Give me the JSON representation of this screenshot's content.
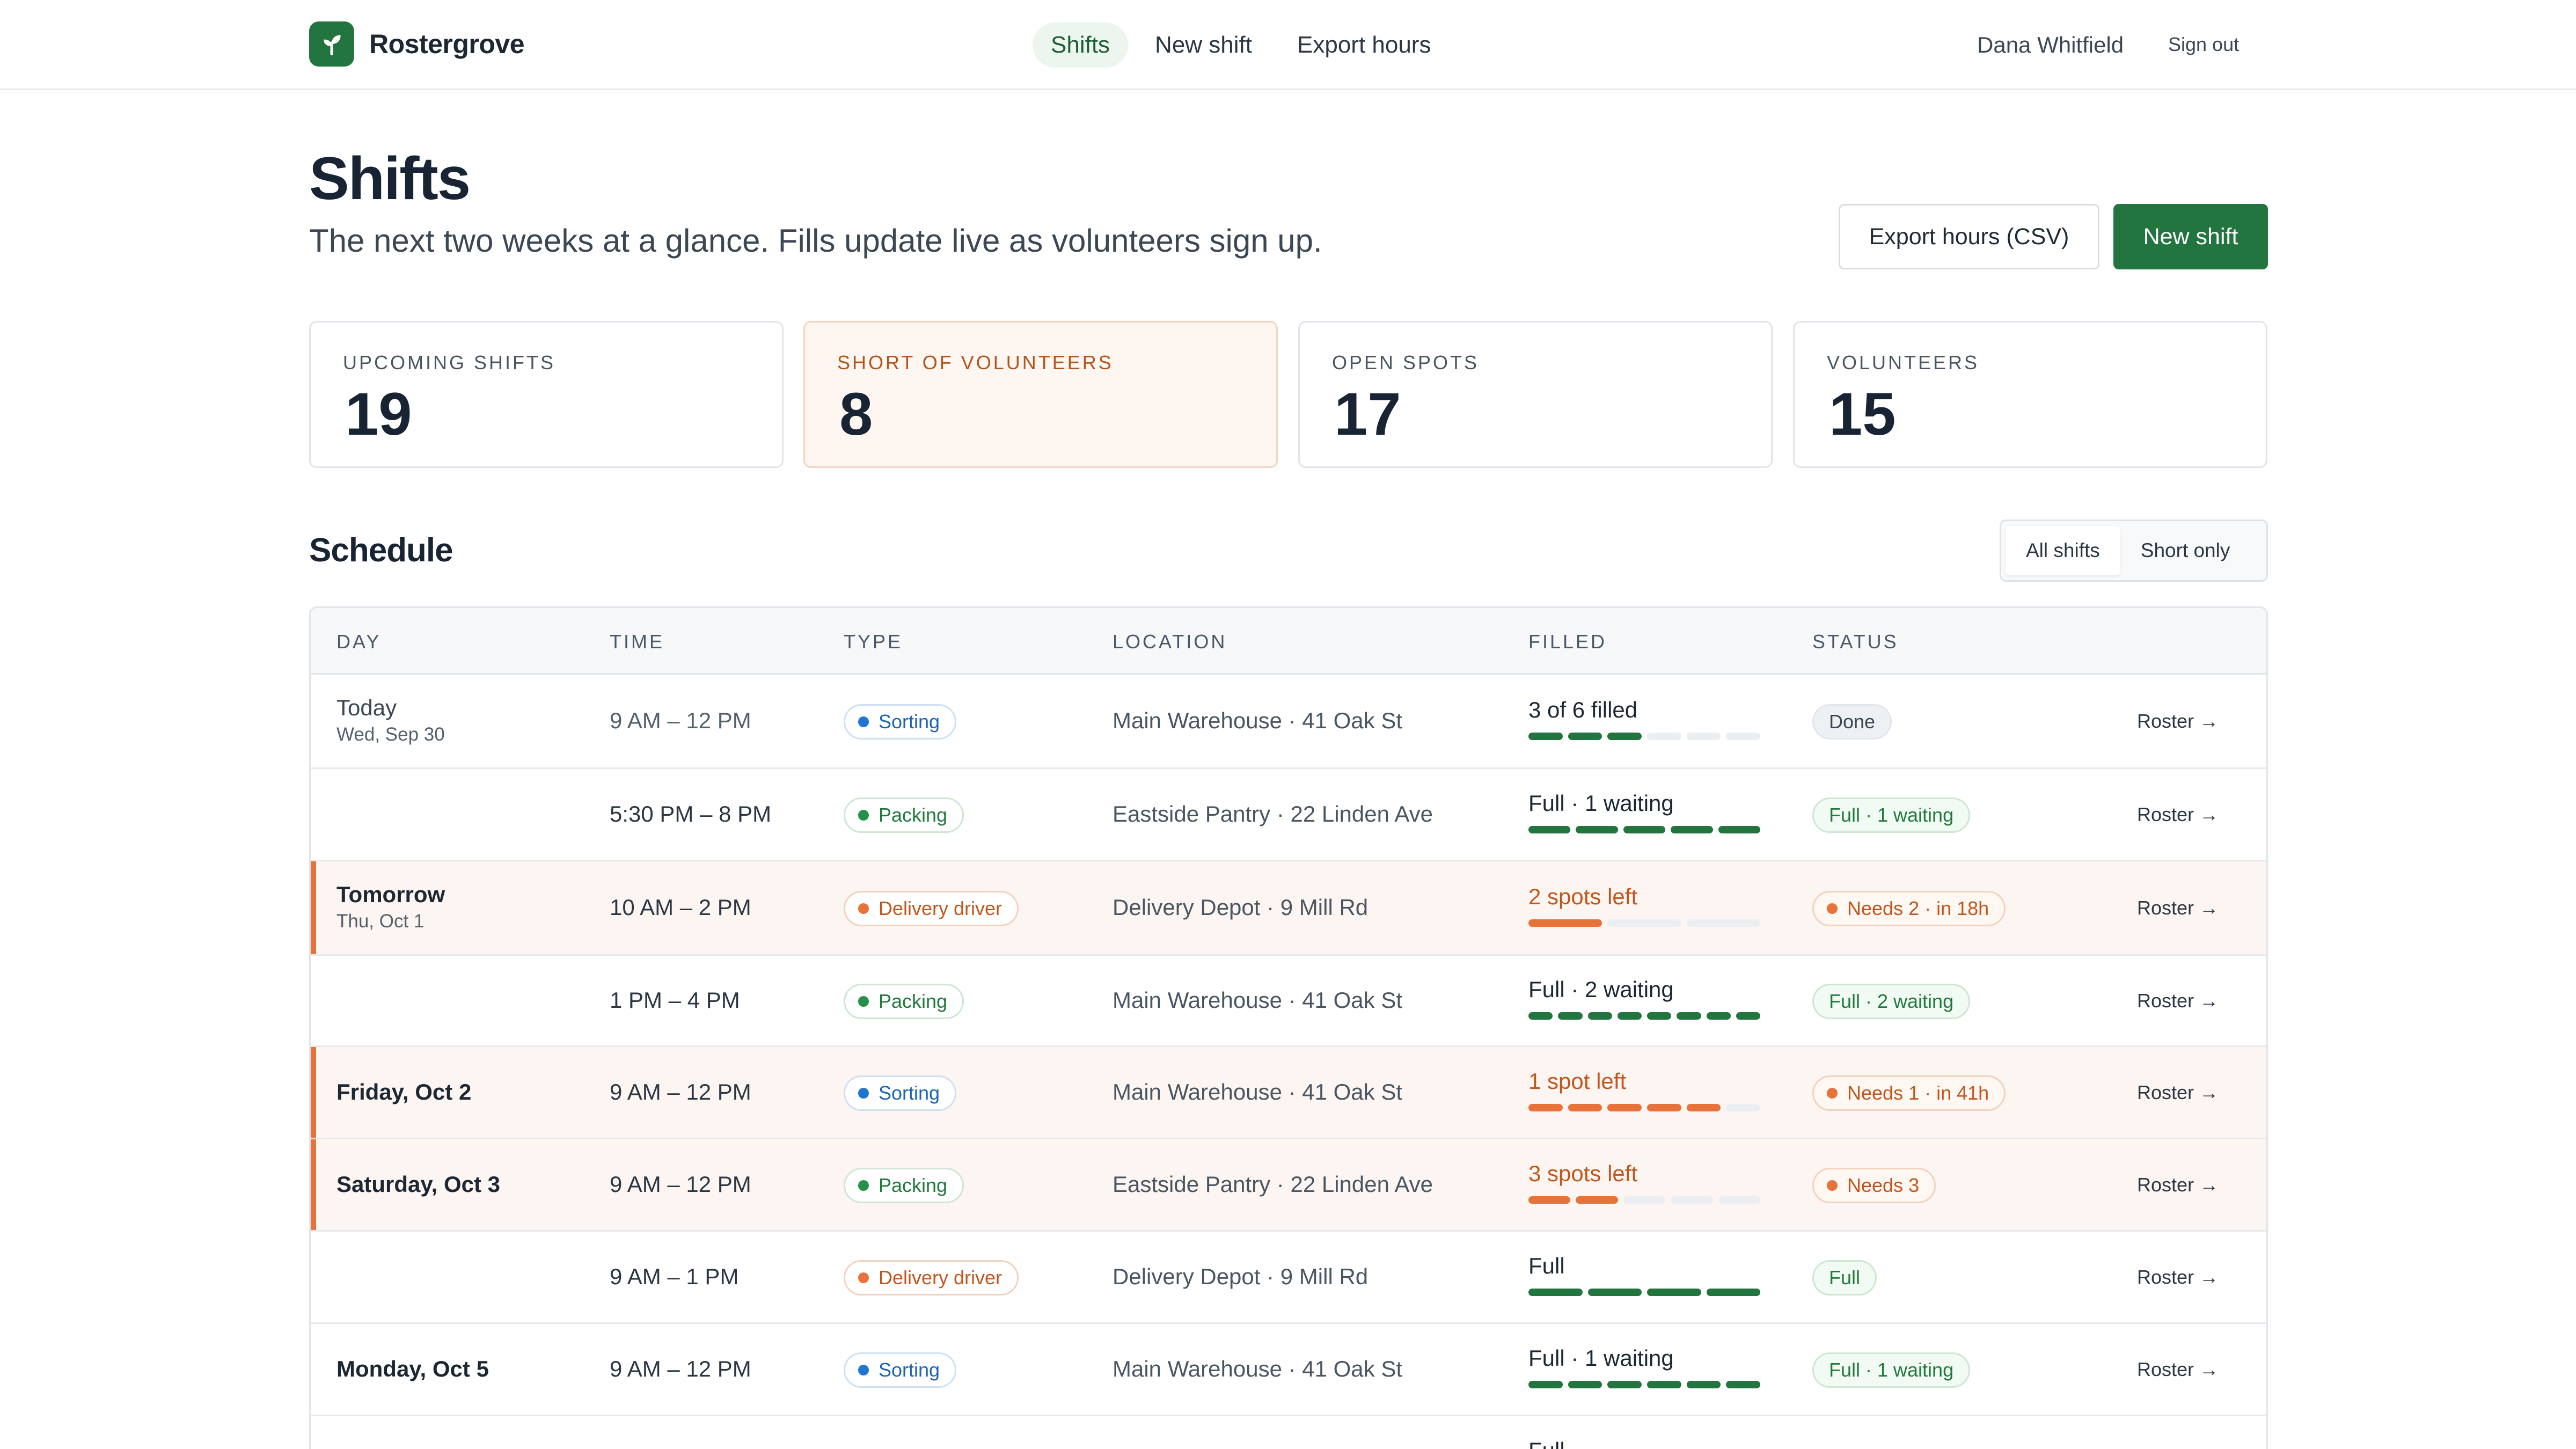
{
  "app": {
    "name": "Rostergrove"
  },
  "nav": {
    "items": [
      "Shifts",
      "New shift",
      "Export hours"
    ],
    "active": "Shifts"
  },
  "user": {
    "name": "Dana Whitfield",
    "signout": "Sign out"
  },
  "header": {
    "title": "Shifts",
    "subtitle": "The next two weeks at a glance. Fills update live as volunteers sign up.",
    "export_button": "Export hours (CSV)",
    "new_button": "New shift"
  },
  "stats": [
    {
      "label": "UPCOMING SHIFTS",
      "value": "19"
    },
    {
      "label": "SHORT OF VOLUNTEERS",
      "value": "8"
    },
    {
      "label": "OPEN SPOTS",
      "value": "17"
    },
    {
      "label": "VOLUNTEERS",
      "value": "15"
    }
  ],
  "schedule": {
    "title": "Schedule",
    "filters": [
      "All shifts",
      "Short only"
    ],
    "active_filter": "All shifts",
    "columns": [
      "DAY",
      "TIME",
      "TYPE",
      "LOCATION",
      "FILLED",
      "STATUS"
    ],
    "rows": [
      {
        "day": "Today",
        "date": "Wed, Sep 30",
        "time": "9 AM – 12 PM",
        "type": "Sorting",
        "location": "Main Warehouse · 41 Oak St",
        "filled": "3 of 6 filled",
        "capacity": 6,
        "filled_count": 3,
        "status": "Done",
        "action": "Roster →"
      },
      {
        "day": "",
        "date": "",
        "time": "5:30 PM – 8 PM",
        "type": "Packing",
        "location": "Eastside Pantry · 22 Linden Ave",
        "filled": "Full · 1 waiting",
        "capacity": 5,
        "filled_count": 5,
        "status": "Full · 1 waiting",
        "action": "Roster →"
      },
      {
        "day": "Tomorrow",
        "date": "Thu, Oct 1",
        "time": "10 AM – 2 PM",
        "type": "Delivery driver",
        "location": "Delivery Depot · 9 Mill Rd",
        "filled": "2 spots left",
        "capacity": 3,
        "filled_count": 1,
        "status": "Needs 2 · in 18h",
        "action": "Roster →"
      },
      {
        "day": "",
        "date": "",
        "time": "1 PM – 4 PM",
        "type": "Packing",
        "location": "Main Warehouse · 41 Oak St",
        "filled": "Full · 2 waiting",
        "capacity": 8,
        "filled_count": 8,
        "status": "Full · 2 waiting",
        "action": "Roster →"
      },
      {
        "day": "Friday, Oct 2",
        "date": "",
        "time": "9 AM – 12 PM",
        "type": "Sorting",
        "location": "Main Warehouse · 41 Oak St",
        "filled": "1 spot left",
        "capacity": 6,
        "filled_count": 5,
        "status": "Needs 1 · in 41h",
        "action": "Roster →"
      },
      {
        "day": "Saturday, Oct 3",
        "date": "",
        "time": "9 AM – 12 PM",
        "type": "Packing",
        "location": "Eastside Pantry · 22 Linden Ave",
        "filled": "3 spots left",
        "capacity": 5,
        "filled_count": 2,
        "status": "Needs 3",
        "action": "Roster →"
      },
      {
        "day": "",
        "date": "",
        "time": "9 AM – 1 PM",
        "type": "Delivery driver",
        "location": "Delivery Depot · 9 Mill Rd",
        "filled": "Full",
        "capacity": 4,
        "filled_count": 4,
        "status": "Full",
        "action": "Roster →"
      },
      {
        "day": "Monday, Oct 5",
        "date": "",
        "time": "9 AM – 12 PM",
        "type": "Sorting",
        "location": "Main Warehouse · 41 Oak St",
        "filled": "Full · 1 waiting",
        "capacity": 6,
        "filled_count": 6,
        "status": "Full · 1 waiting",
        "action": "Roster →"
      },
      {
        "day": "",
        "date": "",
        "time": "",
        "type": "",
        "location": "",
        "filled": "Full",
        "capacity": 6,
        "filled_count": 6,
        "status": "",
        "action": ""
      }
    ]
  },
  "colors": {
    "brand": "#23753f",
    "warn": "#e8733a",
    "sorting": "#1f75d0",
    "packing": "#23914a",
    "delivery": "#e8733a"
  }
}
